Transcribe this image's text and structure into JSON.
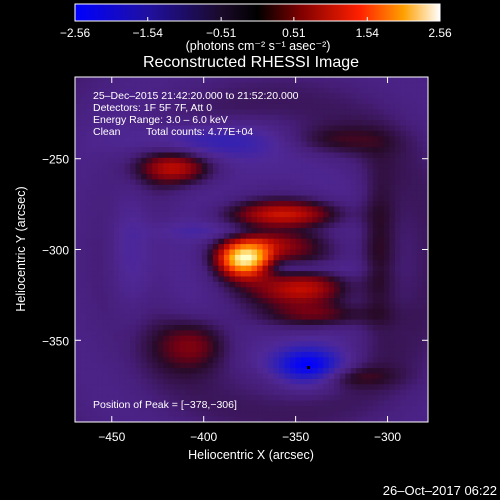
{
  "chart_data": {
    "type": "heatmap",
    "title": "Reconstructed RHESSI Image",
    "xlabel": "Heliocentric X (arcsec)",
    "ylabel": "Heliocentric Y (arcsec)",
    "xlim": [
      -470,
      -278
    ],
    "ylim": [
      -395,
      -205
    ],
    "x_ticks": [
      -450,
      -400,
      -350,
      -300
    ],
    "y_ticks": [
      -250,
      -300,
      -350
    ],
    "x_tick_labels": [
      "−450",
      "−400",
      "−350",
      "−300"
    ],
    "y_tick_labels": [
      "−250",
      "−300",
      "−350"
    ],
    "colorbar": {
      "range": [
        -2.56,
        2.56
      ],
      "ticks": [
        -2.56,
        -1.54,
        -0.51,
        0.51,
        1.54,
        2.56
      ],
      "tick_labels": [
        "−2.56",
        "−1.54",
        "−0.51",
        "0.51",
        "1.54",
        "2.56"
      ],
      "units": "(photons cm⁻² s⁻¹ asec⁻²)"
    },
    "annotations": {
      "time_range": "25–Dec–2015 21:42:20.000 to 21:52:20.000",
      "detectors": "Detectors: 1F 5F 7F, Att 0",
      "energy_range": "Energy Range: 3.0 – 6.0 keV",
      "clean_label": "Clean",
      "total_counts": "Total counts: 4.77E+04",
      "peak_position": "Position of Peak = [−378,−306]"
    },
    "peak": {
      "x": -378,
      "y": -306
    },
    "minimum_marker": {
      "x": -343,
      "y": -365
    }
  },
  "footer": {
    "timestamp": "26–Oct–2017 06:22"
  },
  "colors": {
    "background": "#000000",
    "text": "#ffffff",
    "colormap": [
      "#0000ff",
      "#1a1060",
      "#000000",
      "#8a0000",
      "#ff6000",
      "#ffffff"
    ]
  }
}
